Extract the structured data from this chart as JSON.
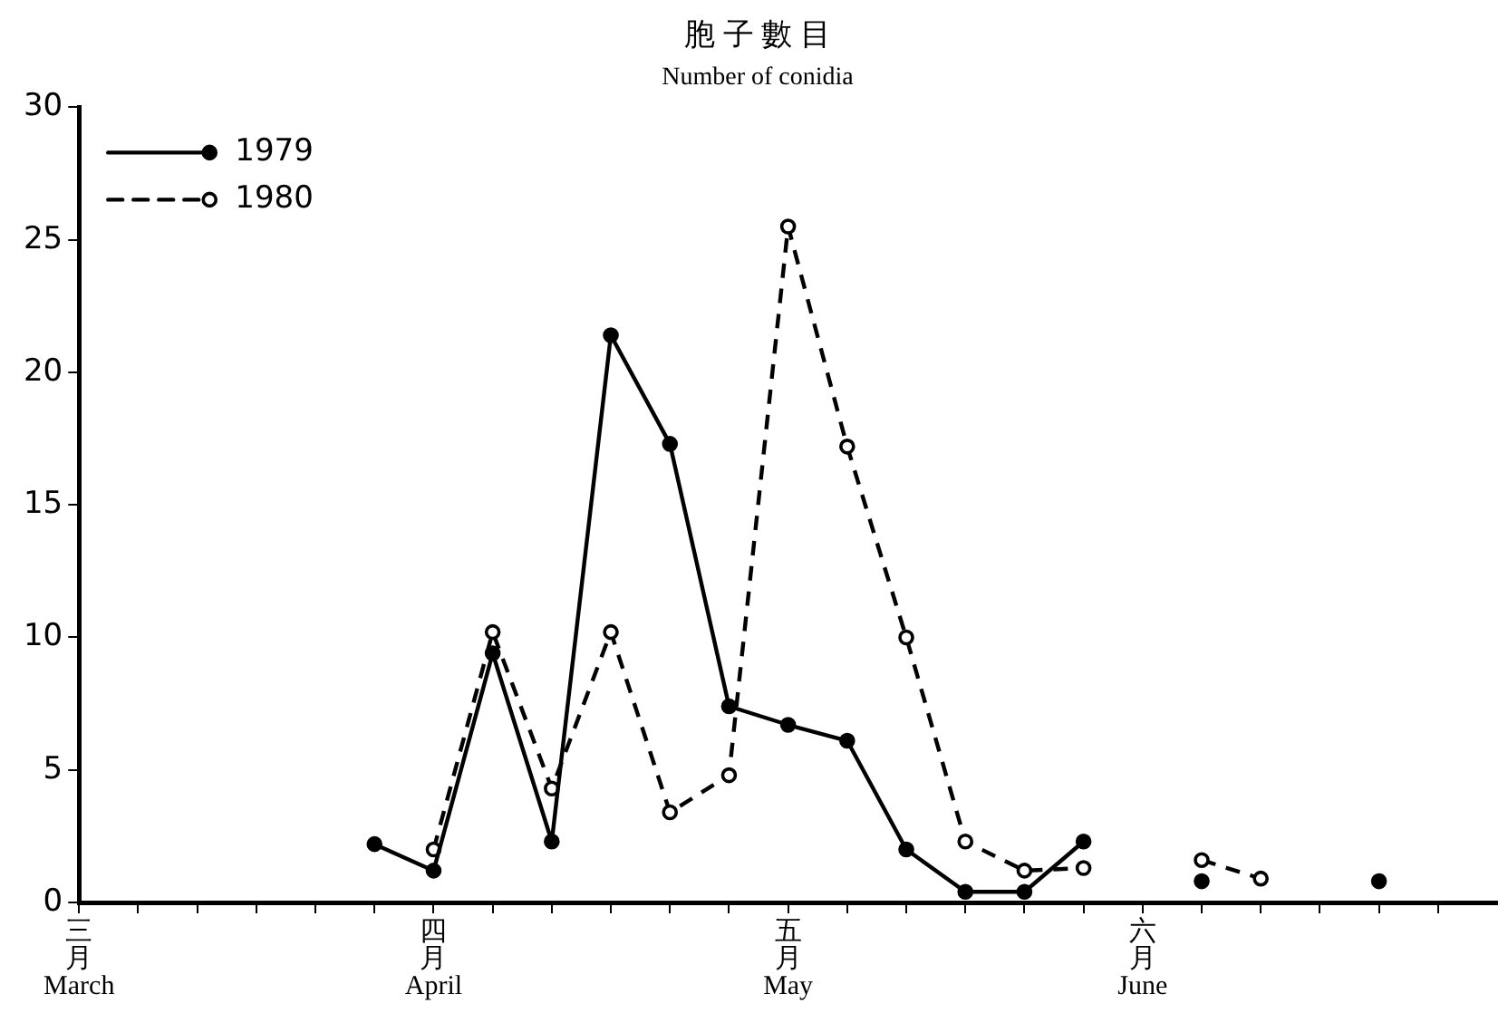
{
  "chart_data": {
    "type": "line",
    "title": "胞 子 數 目",
    "subtitle": "Number of conidia",
    "categories": [
      "三月 March",
      null,
      null,
      null,
      null,
      null,
      "四月 April",
      null,
      null,
      null,
      null,
      null,
      "五月 May",
      null,
      null,
      null,
      null,
      null,
      "六月 June",
      null,
      null,
      null,
      null,
      null
    ],
    "series": [
      {
        "name": "1979",
        "color": "#000000",
        "line_style": "solid",
        "values": [
          null,
          null,
          null,
          null,
          null,
          2.2,
          1.2,
          9.4,
          2.3,
          21.4,
          17.3,
          7.4,
          6.7,
          6.1,
          2.0,
          0.4,
          0.4,
          2.3,
          null,
          0.8,
          null,
          null,
          0.8,
          null
        ]
      },
      {
        "name": "1980",
        "color": "#000000",
        "line_style": "dashed",
        "values": [
          null,
          null,
          null,
          null,
          null,
          null,
          2.0,
          10.2,
          4.3,
          10.2,
          3.4,
          4.8,
          25.5,
          17.2,
          10.0,
          2.3,
          1.2,
          1.3,
          null,
          1.6,
          0.9,
          null,
          null,
          null
        ]
      }
    ],
    "ylim": [
      0,
      30
    ],
    "yticks": [
      0,
      5,
      10,
      15,
      20,
      25,
      30
    ],
    "grid": false,
    "legend": "top left",
    "marker": "circle"
  }
}
